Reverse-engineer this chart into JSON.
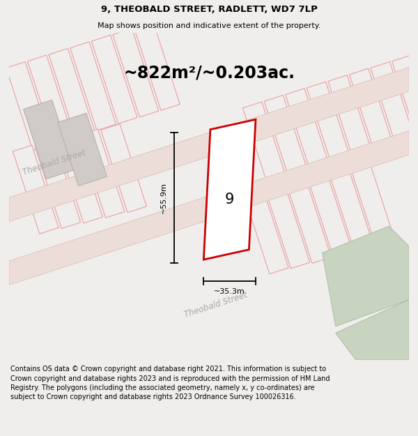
{
  "title": "9, THEOBALD STREET, RADLETT, WD7 7LP",
  "subtitle": "Map shows position and indicative extent of the property.",
  "area_label": "~822m²/~0.203ac.",
  "plot_number": "9",
  "width_label": "~35.3m",
  "height_label": "~55.9m",
  "footer": "Contains OS data © Crown copyright and database right 2021. This information is subject to Crown copyright and database rights 2023 and is reproduced with the permission of HM Land Registry. The polygons (including the associated geometry, namely x, y co-ordinates) are subject to Crown copyright and database rights 2023 Ordnance Survey 100026316.",
  "bg_color": "#f0eeec",
  "title_fontsize": 9.5,
  "subtitle_fontsize": 8,
  "area_fontsize": 17,
  "plot_num_fontsize": 15,
  "dim_fontsize": 8,
  "footer_fontsize": 7
}
